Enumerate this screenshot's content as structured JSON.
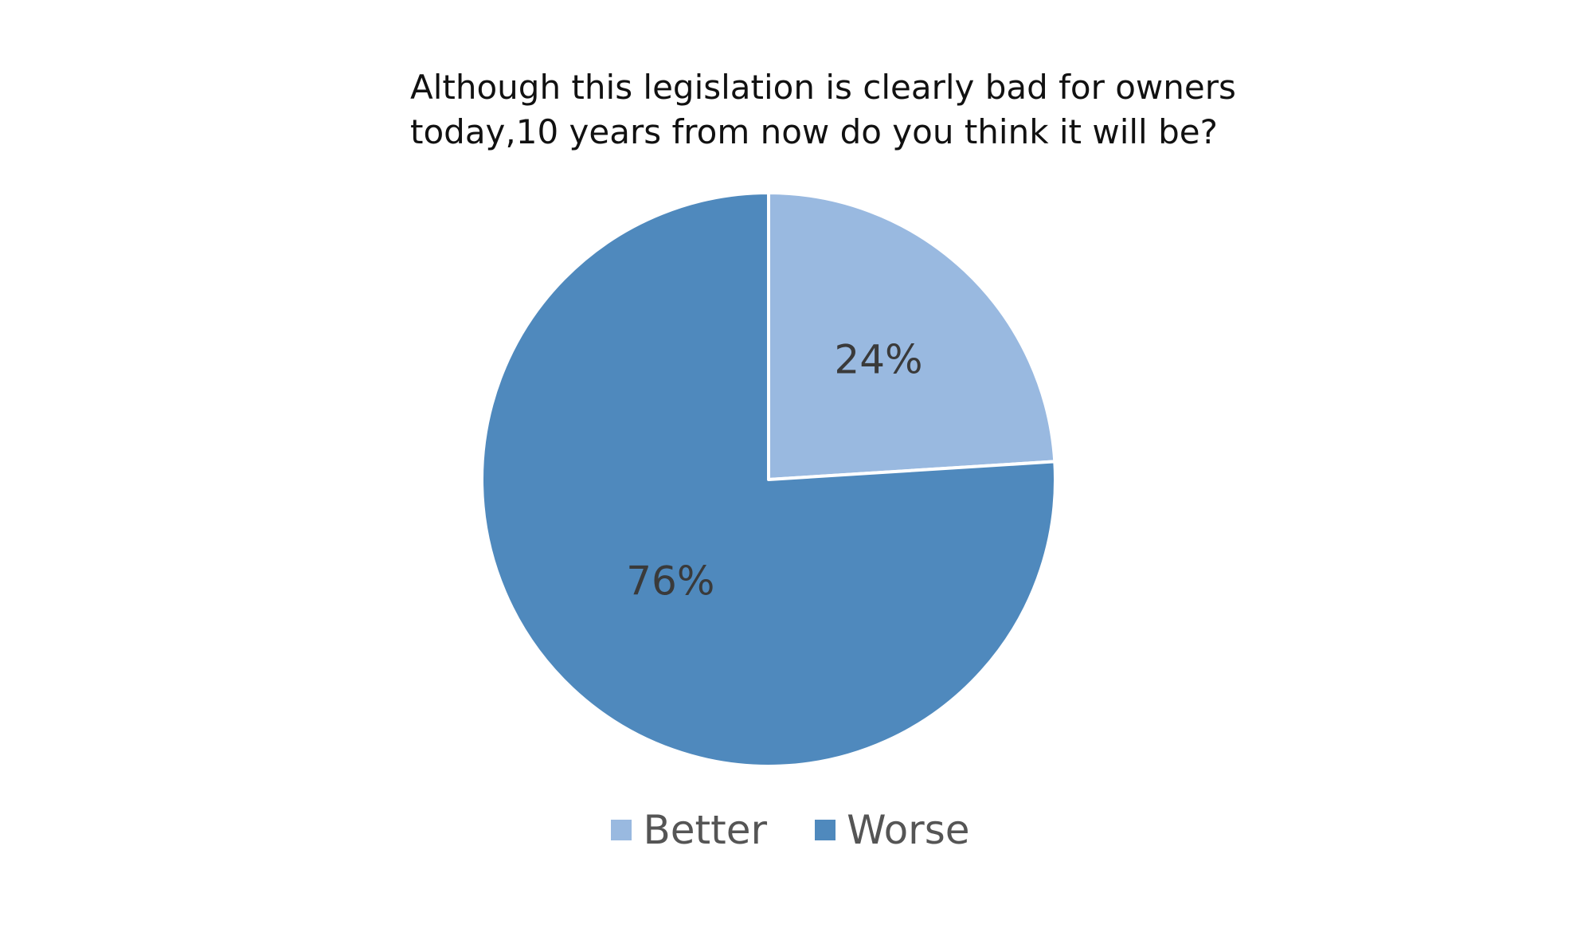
{
  "chart_data": {
    "type": "pie",
    "title_lines": [
      "Although this legislation is clearly bad for owners",
      "today,10 years from now do you think it will be?"
    ],
    "categories": [
      "Better",
      "Worse"
    ],
    "values": [
      24,
      76
    ],
    "labels": [
      "24%",
      "76%"
    ],
    "colors": [
      "#99B9E0",
      "#4F89BD"
    ],
    "legend_position": "bottom",
    "start_angle": "12 o'clock, clockwise"
  }
}
